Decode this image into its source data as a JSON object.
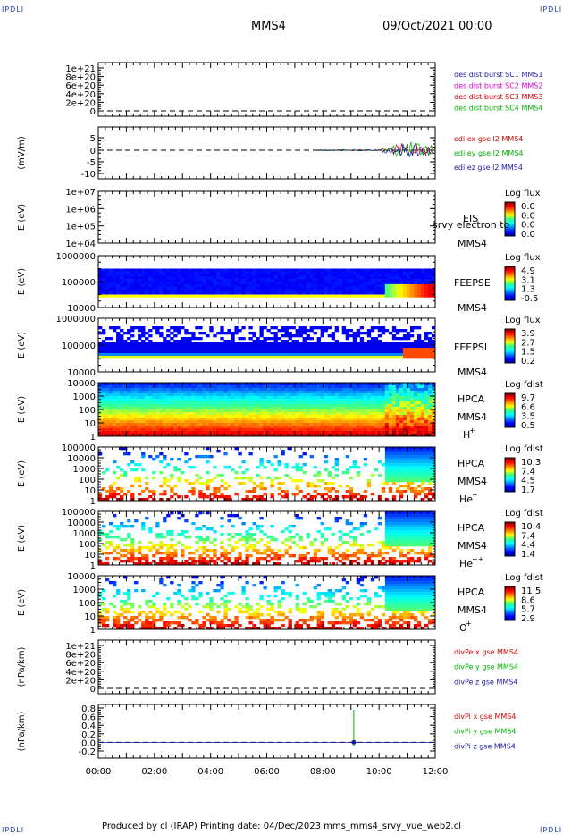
{
  "corner_tag": "IPDLI",
  "header": {
    "spacecraft": "MMS4",
    "date": "09/Oct/2021 00:00"
  },
  "footer": {
    "text": "Produced by cl (IRAP)   Printing date: 04/Dec/2023   mms_mms4_srvy_vue_web2.cl"
  },
  "colors": {
    "mms1": "#1a1aa0",
    "mms2": "#d000d0",
    "mms3": "#d00000",
    "mms4": "#00b000",
    "red": "#d00000",
    "green": "#00b000",
    "blue": "#1a1aa0"
  },
  "chart_data": [
    {
      "type": "line",
      "id": "density",
      "yticks": [
        "1e+21",
        "8e+20",
        "6e+20",
        "4e+20",
        "2e+20",
        "0"
      ],
      "legend": [
        {
          "text": "des dist burst SC1 MMS1",
          "color": "mms1"
        },
        {
          "text": "des dist burst SC2 MMS2",
          "color": "mms2"
        },
        {
          "text": "des dist burst SC3 MMS3",
          "color": "mms3"
        },
        {
          "text": "des dist burst SC4 MMS4",
          "color": "mms4"
        }
      ]
    },
    {
      "type": "line",
      "id": "edi",
      "ylabel": "(mV/m)",
      "ylim": [
        -12,
        7
      ],
      "yticks": [
        "5",
        "0",
        "-5",
        "-10"
      ],
      "legend": [
        {
          "text": "edi ex gse l2 MMS4",
          "color": "red"
        },
        {
          "text": "edi ey gse l2 MMS4",
          "color": "green"
        },
        {
          "text": "edi ez gse l2 MMS4",
          "color": "blue"
        }
      ]
    },
    {
      "type": "heatmap",
      "id": "eis",
      "ylabel": "E (eV)",
      "yticks": [
        "1e+07",
        "1e+06",
        "1e+05",
        "1e+04"
      ],
      "labels": [
        "EIS",
        "MMS4"
      ],
      "overlay": "srvy electron to",
      "cbar_title": "Log flux",
      "cbar_ticks": [
        "0.0",
        "0.0",
        "0.0",
        "0.0"
      ]
    },
    {
      "type": "heatmap",
      "id": "feepse",
      "ylabel": "E (eV)",
      "yticks": [
        "1000000",
        "100000",
        "10000"
      ],
      "labels": [
        "FEEPSE",
        "MMS4"
      ],
      "cbar_title": "Log flux",
      "cbar_ticks": [
        "4.9",
        "3.1",
        "1.3",
        "-0.5"
      ]
    },
    {
      "type": "heatmap",
      "id": "feepsi",
      "ylabel": "E (eV)",
      "yticks": [
        "1000000",
        "100000",
        "10000"
      ],
      "labels": [
        "FEEPSI",
        "MMS4"
      ],
      "cbar_title": "Log flux",
      "cbar_ticks": [
        "3.9",
        "2.7",
        "1.5",
        "0.2"
      ]
    },
    {
      "type": "heatmap",
      "id": "hpca_h",
      "ylabel": "E (eV)",
      "yticks": [
        "10000",
        "1000",
        "100",
        "10",
        "1"
      ],
      "labels": [
        "HPCA",
        "MMS4"
      ],
      "species": "H",
      "charge": "+",
      "cbar_title": "Log fdist",
      "cbar_ticks": [
        "9.7",
        "6.6",
        "3.5",
        "0.5"
      ]
    },
    {
      "type": "heatmap",
      "id": "hpca_he",
      "ylabel": "E (eV)",
      "yticks": [
        "100000",
        "10000",
        "1000",
        "100",
        "10",
        "1"
      ],
      "labels": [
        "HPCA",
        "MMS4"
      ],
      "species": "He",
      "charge": "+",
      "cbar_title": "Log fdist",
      "cbar_ticks": [
        "10.3",
        "7.4",
        "4.5",
        "1.7"
      ]
    },
    {
      "type": "heatmap",
      "id": "hpca_hepp",
      "ylabel": "E (eV)",
      "yticks": [
        "100000",
        "10000",
        "1000",
        "100",
        "10",
        "1"
      ],
      "labels": [
        "HPCA",
        "MMS4"
      ],
      "species": "He",
      "charge": "++",
      "cbar_title": "Log fdist",
      "cbar_ticks": [
        "10.4",
        "7.4",
        "4.4",
        "1.4"
      ]
    },
    {
      "type": "heatmap",
      "id": "hpca_o",
      "ylabel": "E (eV)",
      "yticks": [
        "10000",
        "1000",
        "100",
        "10",
        "1"
      ],
      "labels": [
        "HPCA",
        "MMS4"
      ],
      "species": "O",
      "charge": "+",
      "cbar_title": "Log fdist",
      "cbar_ticks": [
        "11.5",
        "8.6",
        "5.7",
        "2.9"
      ]
    },
    {
      "type": "line",
      "id": "divpe",
      "ylabel": "(nPa/km)",
      "yticks": [
        "1e+21",
        "8e+20",
        "6e+20",
        "4e+20",
        "2e+20",
        "0"
      ],
      "legend": [
        {
          "text": "divPe x gse MMS4",
          "color": "red"
        },
        {
          "text": "divPe y gse MMS4",
          "color": "green"
        },
        {
          "text": "divPe z gse MMS4",
          "color": "blue"
        }
      ]
    },
    {
      "type": "line",
      "id": "divpi",
      "ylabel": "(nPa/km)",
      "ylim": [
        -0.3,
        0.9
      ],
      "yticks": [
        "0.8",
        "0.6",
        "0.4",
        "0.2",
        "0.0",
        "-0.2"
      ],
      "legend": [
        {
          "text": "divPi x gse MMS4",
          "color": "red"
        },
        {
          "text": "divPi y gse MMS4",
          "color": "green"
        },
        {
          "text": "divPi z gse MMS4",
          "color": "blue"
        }
      ]
    }
  ],
  "xticks": [
    "00:00",
    "02:00",
    "04:00",
    "06:00",
    "08:00",
    "10:00",
    "12:00"
  ],
  "xlim": [
    "00:00",
    "12:00"
  ]
}
